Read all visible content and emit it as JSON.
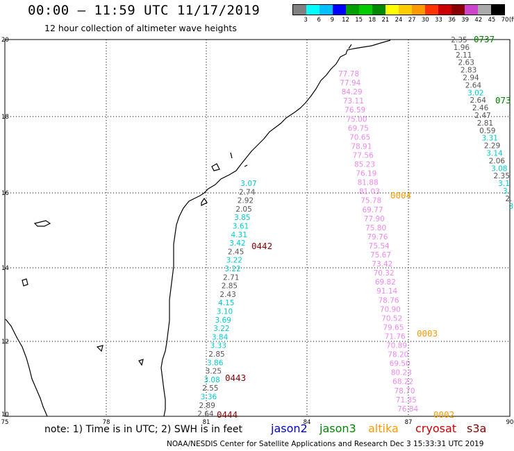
{
  "header": {
    "title": "00:00 – 11:59 UTC 11/17/2019",
    "subtitle": "12 hour collection of altimeter wave heights"
  },
  "color_scale": {
    "unit_label": "(ft)",
    "ticks": [
      "3",
      "6",
      "9",
      "12",
      "15",
      "18",
      "21",
      "24",
      "27",
      "30",
      "33",
      "36",
      "39",
      "42",
      "45",
      "70"
    ],
    "colors": [
      "#808080",
      "#00ffff",
      "#00bfff",
      "#0000ff",
      "#00a000",
      "#00cc00",
      "#008800",
      "#ffff00",
      "#ffcc00",
      "#ff9900",
      "#ff3300",
      "#cc0000",
      "#880000",
      "#cc44cc",
      "#aaaaaa",
      "#000000"
    ]
  },
  "axes": {
    "lat_labels": [
      "20",
      "18",
      "16",
      "14",
      "12",
      "10"
    ],
    "lon_labels": [
      "75",
      "78",
      "81",
      "84",
      "87",
      "90"
    ]
  },
  "passes": [
    {
      "id": "0737",
      "color": "#008000"
    },
    {
      "id": "073",
      "color": "#008000"
    },
    {
      "id": "0004",
      "color": "#ff9900"
    },
    {
      "id": "0442",
      "color": "#880000"
    },
    {
      "id": "0003",
      "color": "#ff9900"
    },
    {
      "id": "0443",
      "color": "#880000"
    },
    {
      "id": "0444",
      "color": "#880000"
    },
    {
      "id": "0002",
      "color": "#ff9900"
    }
  ],
  "tracks": {
    "pink": [
      "77.78",
      "77.94",
      "84.29",
      "73.11",
      "76.59",
      "75.00",
      "69.75",
      "70.65",
      "78.91",
      "77.56",
      "85.23",
      "76.19",
      "81.88",
      "81.03",
      "75.78",
      "69.77",
      "77.90",
      "75.80",
      "79.76",
      "75.54",
      "75.67",
      "73.42",
      "70.32",
      "69.82",
      "91.14",
      "78.76",
      "70.90",
      "70.52",
      "79.65",
      "71.76",
      "70.89",
      "78.20",
      "69.50",
      "80.23",
      "68.22",
      "78.70",
      "71.35",
      "76.84"
    ],
    "right": [
      "2.35",
      "1.96",
      "2.11",
      "2.63",
      "2.83",
      "2.94",
      "2.64",
      "3.02",
      "2.64",
      "2.46",
      "2.47",
      "2.81",
      "0.59",
      "3.31",
      "2.29",
      "3.14",
      "2.06",
      "3.08",
      "2.35",
      "3.1",
      "3.",
      "2.",
      "3"
    ],
    "coastal": [
      "3.07",
      "2.74",
      "2.92",
      "2.05",
      "3.85",
      "3.61",
      "4.31",
      "3.42",
      "2.45",
      "3.22",
      "3.22",
      "2.71",
      "2.85",
      "2.43",
      "4.15",
      "3.10",
      "3.69",
      "3.22",
      "3.84",
      "3.33",
      "2.85",
      "3.86",
      "3.25",
      "3.08",
      "2.55",
      "3.36",
      "2.89",
      "2.64"
    ]
  },
  "footer": {
    "note": "note: 1) Time is in UTC; 2) SWH is in feet",
    "legend": [
      {
        "label": "jason2",
        "color": "#0000cc"
      },
      {
        "label": "jason3",
        "color": "#008800"
      },
      {
        "label": "altika",
        "color": "#ff9900"
      },
      {
        "label": "cryosat",
        "color": "#cc0000"
      },
      {
        "label": "s3a",
        "color": "#880000"
      }
    ],
    "credit": "NOAA/NESDIS Center for Satellite Applications and Research   Dec  3 15:33:31 UTC 2019"
  }
}
